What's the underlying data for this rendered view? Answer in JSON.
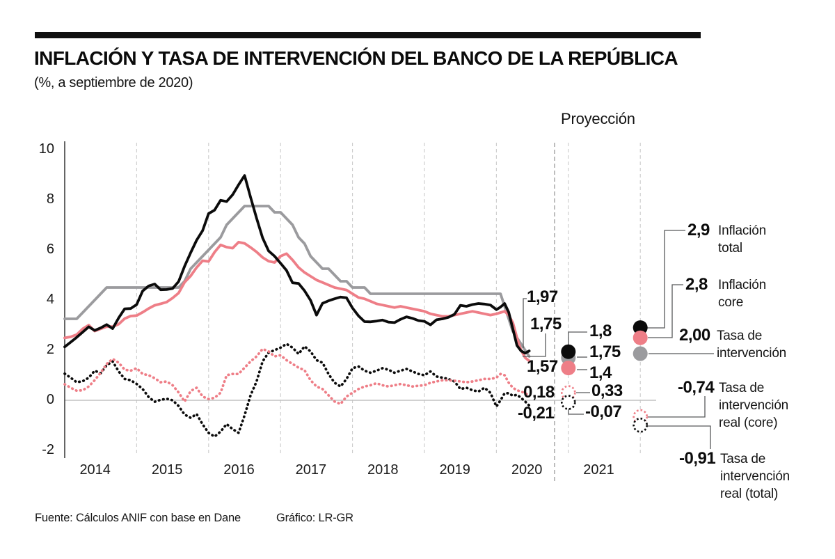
{
  "header": {
    "title": "INFLACIÓN Y TASA DE INTERVENCIÓN DEL BANCO DE LA REPÚBLICA",
    "subtitle": "(%, a septiembre de 2020)"
  },
  "footer": {
    "source": "Fuente: Cálculos ANIF con base en Dane",
    "credit": "Gráfico: LR-GR"
  },
  "chart_data": {
    "type": "line",
    "title": "Inflación y tasa de intervención del Banco de la República",
    "units": "%",
    "as_of": "septiembre de 2020",
    "projection_label": "Proyección",
    "x_axis": {
      "start": "2014-01",
      "end": "2020-09",
      "frequency": "monthly",
      "tick_labels": [
        "2014",
        "2015",
        "2016",
        "2017",
        "2018",
        "2019",
        "2020",
        "2021"
      ]
    },
    "y_axis": {
      "ticks": [
        10,
        8,
        6,
        4,
        2,
        0,
        -2
      ],
      "min": -2,
      "max": 10,
      "grid": "vertical-dashed"
    },
    "series": [
      {
        "name": "Inflación total",
        "color": "#0b0b0b",
        "style": "solid",
        "values": [
          2.13,
          2.32,
          2.51,
          2.72,
          2.93,
          2.79,
          2.89,
          3.02,
          2.86,
          3.29,
          3.65,
          3.66,
          3.82,
          4.36,
          4.56,
          4.64,
          4.41,
          4.42,
          4.46,
          4.74,
          5.35,
          5.89,
          6.39,
          6.77,
          7.45,
          7.59,
          7.98,
          7.93,
          8.2,
          8.6,
          8.97,
          8.1,
          7.27,
          6.48,
          5.96,
          5.75,
          5.47,
          5.18,
          4.69,
          4.66,
          4.37,
          3.99,
          3.4,
          3.87,
          3.97,
          4.05,
          4.12,
          4.09,
          3.68,
          3.37,
          3.14,
          3.13,
          3.16,
          3.2,
          3.12,
          3.1,
          3.23,
          3.33,
          3.27,
          3.18,
          3.15,
          3.01,
          3.21,
          3.25,
          3.31,
          3.43,
          3.79,
          3.75,
          3.82,
          3.86,
          3.84,
          3.8,
          3.62,
          3.72,
          3.86,
          3.51,
          2.85,
          2.19,
          1.97,
          1.88,
          1.97
        ]
      },
      {
        "name": "Inflación core",
        "color": "#ee7e87",
        "style": "solid",
        "values": [
          2.49,
          2.53,
          2.62,
          2.85,
          3.0,
          2.76,
          2.85,
          2.94,
          2.94,
          3.04,
          3.26,
          3.36,
          3.38,
          3.51,
          3.66,
          3.79,
          3.85,
          3.92,
          4.08,
          4.28,
          4.71,
          4.96,
          5.3,
          5.57,
          5.54,
          5.91,
          6.2,
          6.11,
          6.07,
          6.31,
          6.26,
          6.1,
          5.92,
          5.7,
          5.55,
          5.5,
          5.75,
          5.85,
          5.6,
          5.3,
          5.1,
          4.95,
          4.8,
          4.7,
          4.6,
          4.5,
          4.45,
          4.4,
          4.25,
          4.1,
          4.05,
          3.95,
          3.85,
          3.8,
          3.75,
          3.7,
          3.75,
          3.7,
          3.65,
          3.6,
          3.55,
          3.45,
          3.4,
          3.35,
          3.35,
          3.4,
          3.45,
          3.5,
          3.55,
          3.5,
          3.45,
          3.4,
          3.45,
          3.5,
          3.55,
          3.4,
          3.1,
          2.5,
          2.0,
          1.7,
          1.57
        ]
      },
      {
        "name": "Tasa de intervención",
        "color": "#9b9b9e",
        "style": "solid",
        "values": [
          3.25,
          3.25,
          3.25,
          3.5,
          3.75,
          4.0,
          4.25,
          4.5,
          4.5,
          4.5,
          4.5,
          4.5,
          4.5,
          4.5,
          4.5,
          4.5,
          4.5,
          4.5,
          4.5,
          4.5,
          4.75,
          5.25,
          5.5,
          5.75,
          6.0,
          6.25,
          6.5,
          7.0,
          7.25,
          7.5,
          7.75,
          7.75,
          7.75,
          7.75,
          7.75,
          7.5,
          7.5,
          7.25,
          7.0,
          6.5,
          6.25,
          5.75,
          5.5,
          5.25,
          5.25,
          5.0,
          4.75,
          4.75,
          4.5,
          4.5,
          4.5,
          4.25,
          4.25,
          4.25,
          4.25,
          4.25,
          4.25,
          4.25,
          4.25,
          4.25,
          4.25,
          4.25,
          4.25,
          4.25,
          4.25,
          4.25,
          4.25,
          4.25,
          4.25,
          4.25,
          4.25,
          4.25,
          4.25,
          4.25,
          3.75,
          3.25,
          2.75,
          2.5,
          2.25,
          2.0,
          1.75
        ]
      },
      {
        "name": "Tasa de intervención real (core)",
        "color": "#ee7e87",
        "style": "dotted",
        "values": [
          0.64,
          0.5,
          0.38,
          0.4,
          0.55,
          0.8,
          1.1,
          1.45,
          1.65,
          1.5,
          1.22,
          1.18,
          1.28,
          1.05,
          1.0,
          0.88,
          0.72,
          0.75,
          0.6,
          0.31,
          -0.05,
          0.37,
          0.5,
          0.15,
          0.05,
          0.1,
          0.3,
          1.0,
          1.05,
          1.05,
          1.3,
          1.55,
          1.75,
          2.05,
          1.95,
          1.75,
          1.8,
          1.6,
          1.45,
          1.3,
          1.2,
          0.8,
          0.55,
          0.45,
          0.2,
          -0.05,
          -0.15,
          0.15,
          0.3,
          0.45,
          0.55,
          0.6,
          0.68,
          0.6,
          0.55,
          0.6,
          0.65,
          0.6,
          0.55,
          0.58,
          0.6,
          0.7,
          0.75,
          0.8,
          0.8,
          0.78,
          0.75,
          0.72,
          0.75,
          0.8,
          0.85,
          0.85,
          0.9,
          1.05,
          1.0,
          0.7,
          0.5,
          0.4,
          0.35,
          0.28,
          0.18
        ]
      },
      {
        "name": "Tasa de intervención real (total)",
        "color": "#0b0b0b",
        "style": "dotted",
        "values": [
          1.06,
          0.9,
          0.72,
          0.76,
          0.9,
          1.18,
          1.08,
          1.4,
          1.55,
          1.15,
          0.85,
          0.8,
          0.65,
          0.45,
          0.13,
          -0.06,
          0.02,
          0.06,
          0.0,
          -0.23,
          -0.57,
          -0.7,
          -0.55,
          -0.96,
          -1.3,
          -1.45,
          -1.25,
          -0.95,
          -1.15,
          -1.3,
          -0.6,
          0.2,
          0.75,
          1.55,
          1.9,
          2.0,
          2.1,
          2.25,
          2.1,
          1.85,
          2.15,
          1.95,
          1.6,
          1.5,
          1.05,
          0.7,
          0.55,
          0.85,
          1.28,
          1.35,
          1.18,
          1.1,
          1.18,
          1.28,
          1.22,
          1.1,
          1.18,
          1.25,
          1.15,
          1.05,
          1.0,
          1.15,
          0.95,
          0.9,
          0.85,
          0.75,
          0.45,
          0.5,
          0.4,
          0.35,
          0.5,
          0.3,
          -0.25,
          0.0,
          0.28,
          0.28,
          0.18,
          0.22,
          0.1,
          -0.05,
          -0.21
        ]
      }
    ],
    "latest_labels": {
      "total": "1,97",
      "tasa": "1,75",
      "core": "1,57",
      "real_core": "0,18",
      "real_total": "-0,21"
    },
    "proyeccion": {
      "points": [
        {
          "period": "dic-2020",
          "values": {
            "total": 1.8,
            "tasa": 1.75,
            "core": 1.4,
            "real_core": 0.33,
            "real_total": -0.07
          },
          "labels": {
            "total": "1,8",
            "tasa": "1,75",
            "core": "1,4",
            "real_core": "0,33",
            "real_total": "-0,07"
          }
        },
        {
          "period": "dic-2021",
          "values": {
            "total": 2.9,
            "core": 2.8,
            "tasa": 2.0,
            "real_core": -0.74,
            "real_total": -0.91
          },
          "labels": {
            "total": "2,9",
            "core": "2,8",
            "tasa": "2,00",
            "real_core": "-0,74",
            "real_total": "-0,91"
          }
        }
      ]
    },
    "legend": [
      {
        "value": "2,9",
        "label": "Inflación total"
      },
      {
        "value": "2,8",
        "label": "Inflación core"
      },
      {
        "value": "2,00",
        "label": "Tasa de intervención"
      },
      {
        "value": "-0,74",
        "label": "Tasa de intervención real (core)"
      },
      {
        "value": "-0,91",
        "label": "Tasa de intervención real (total)"
      }
    ]
  }
}
